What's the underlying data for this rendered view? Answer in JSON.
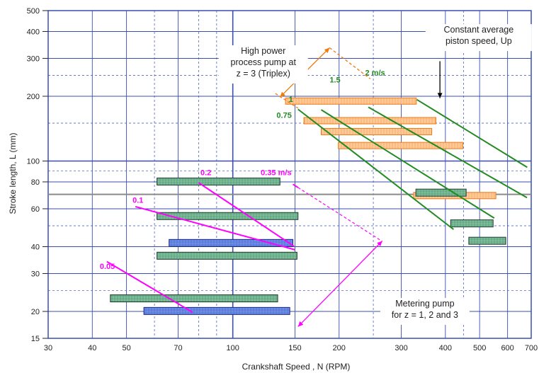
{
  "chart_data": {
    "type": "scatter",
    "xlabel": "Crankshaft Speed , N (RPM)",
    "ylabel": "Stroke length, L (mm)",
    "xscale": "log",
    "yscale": "log",
    "xlim": [
      30,
      700
    ],
    "ylim": [
      15,
      500
    ],
    "xticks": [
      {
        "v": 30,
        "label": "30"
      },
      {
        "v": 40,
        "label": "40"
      },
      {
        "v": 50,
        "label": "50"
      },
      {
        "v": 70,
        "label": "70"
      },
      {
        "v": 100,
        "label": "100"
      },
      {
        "v": 150,
        "label": "150"
      },
      {
        "v": 200,
        "label": "200"
      },
      {
        "v": 300,
        "label": "300"
      },
      {
        "v": 400,
        "label": "400"
      },
      {
        "v": 500,
        "label": "500"
      },
      {
        "v": 600,
        "label": "600"
      },
      {
        "v": 700,
        "label": "700"
      }
    ],
    "yticks": [
      {
        "v": 15,
        "label": "15"
      },
      {
        "v": 20,
        "label": "20"
      },
      {
        "v": 30,
        "label": "30"
      },
      {
        "v": 40,
        "label": "40"
      },
      {
        "v": 60,
        "label": "60"
      },
      {
        "v": 80,
        "label": "80"
      },
      {
        "v": 100,
        "label": "100"
      },
      {
        "v": 200,
        "label": "200"
      },
      {
        "v": 300,
        "label": "300"
      },
      {
        "v": 400,
        "label": "400"
      },
      {
        "v": 500,
        "label": "500"
      }
    ],
    "grid": true,
    "bars": [
      {
        "group": "green",
        "x0": 61,
        "x1": 136,
        "y": 80.3
      },
      {
        "group": "green",
        "x0": 61,
        "x1": 153,
        "y": 55.5
      },
      {
        "group": "green",
        "x0": 61,
        "x1": 152,
        "y": 36.3
      },
      {
        "group": "blue",
        "x0": 66,
        "x1": 148,
        "y": 41.6
      },
      {
        "group": "green",
        "x0": 45,
        "x1": 134,
        "y": 23.0
      },
      {
        "group": "blue",
        "x0": 56,
        "x1": 145,
        "y": 20.1
      },
      {
        "group": "orange",
        "x0": 141,
        "x1": 331,
        "y": 190
      },
      {
        "group": "orange",
        "x0": 159,
        "x1": 376,
        "y": 154
      },
      {
        "group": "orange",
        "x0": 178,
        "x1": 366,
        "y": 137
      },
      {
        "group": "orange",
        "x0": 199,
        "x1": 448,
        "y": 118
      },
      {
        "group": "orange",
        "x0": 325,
        "x1": 556,
        "y": 69.1
      },
      {
        "group": "green",
        "x0": 330,
        "x1": 458,
        "y": 71.3
      },
      {
        "group": "green",
        "x0": 414,
        "x1": 546,
        "y": 51.3
      },
      {
        "group": "green",
        "x0": 466,
        "x1": 593,
        "y": 42.6
      }
    ],
    "speed_lines": [
      {
        "label": "0.05",
        "color": "#ff00ff",
        "x0": 44,
        "y0": 34.1,
        "x1": 77,
        "y1": 19.8,
        "lx": 42,
        "ly": 31.5
      },
      {
        "label": "0.1",
        "color": "#ff00ff",
        "x0": 53,
        "y0": 61.4,
        "x1": 150,
        "y1": 38.7,
        "lx": 52,
        "ly": 64
      },
      {
        "label": "0.2",
        "color": "#ff00ff",
        "x0": 80,
        "y0": 79.3,
        "x1": 149,
        "y1": 40.2,
        "lx": 81,
        "ly": 86
      },
      {
        "label": "0.35 m/s",
        "color": "#ff00ff",
        "x0": 148,
        "y0": 78.0,
        "x1": 264,
        "y1": 42.5,
        "lx": 120,
        "ly": 86,
        "dashed_from_x": 153
      },
      {
        "label": "0.75",
        "color": "#228b22",
        "x0": 153,
        "y0": 174,
        "x1": 422,
        "y1": 48.1,
        "lx": 133,
        "ly": 159
      },
      {
        "label": "1",
        "color": "#228b22",
        "x0": 178,
        "y0": 173,
        "x1": 550,
        "y1": 54.3,
        "lx": 144,
        "ly": 188
      },
      {
        "label": "1.5",
        "color": "#228b22",
        "x0": 242,
        "y0": 178,
        "x1": 681,
        "y1": 67.6,
        "lx": 188,
        "ly": 232
      },
      {
        "label": "2 m/s",
        "color": "#228b22",
        "x0": 332,
        "y0": 193,
        "x1": 682,
        "y1": 93.5,
        "lx": 237,
        "ly": 250
      }
    ],
    "annotations": [
      {
        "lines": [
          "High power",
          "process pump at",
          "z = 3 (Triplex)"
        ],
        "x": 122,
        "y": 315
      },
      {
        "lines": [
          "Constant average",
          "piston speed, Up"
        ],
        "x": 497,
        "y": 395
      },
      {
        "lines": [
          "Metering pump",
          "for z = 1, 2 and 3"
        ],
        "x": 350,
        "y": 21.1
      }
    ],
    "colors": {
      "green_fill": "#79bf9a",
      "blue_fill": "#6a8ff0",
      "orange_fill": "#ffc894",
      "orange_stroke": "#f07b10",
      "grid": "#3a4fb0",
      "pink": "#ff00ff",
      "dark_green": "#228b22"
    }
  }
}
